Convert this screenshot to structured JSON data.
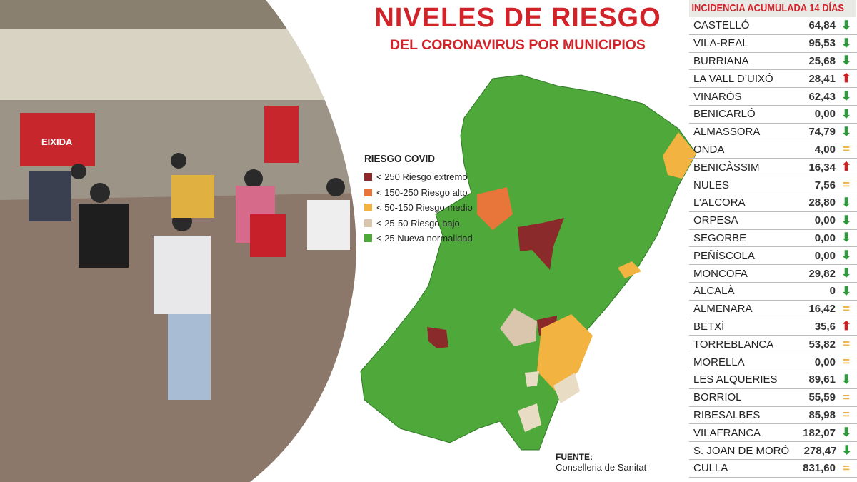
{
  "header": {
    "title": "NIVELES DE RIESGO",
    "subtitle": "DEL CORONAVIRUS POR MUNICIPIOS"
  },
  "photo": {
    "sign_text": "EIXIDA"
  },
  "legend": {
    "title": "RIESGO COVID",
    "items": [
      {
        "label": "< 250 Riesgo extremo",
        "color": "#8b2a2a"
      },
      {
        "label": "< 150-250 Riesgo alto",
        "color": "#e8763a"
      },
      {
        "label": "< 50-150 Riesgo medio",
        "color": "#f2b340"
      },
      {
        "label": "< 25-50 Riesgo bajo",
        "color": "#d9c6ac"
      },
      {
        "label": "< 25 Nueva normalidad",
        "color": "#4ea83a"
      }
    ]
  },
  "source": {
    "label": "FUENTE:",
    "value": "Conselleria de Sanitat"
  },
  "table": {
    "title": "INCIDENCIA ACUMULADA 14 DÍAS",
    "rows": [
      {
        "name": "CASTELLÓ",
        "value": "64,84",
        "trend": "down"
      },
      {
        "name": "VILA-REAL",
        "value": "95,53",
        "trend": "down"
      },
      {
        "name": "BURRIANA",
        "value": "25,68",
        "trend": "down"
      },
      {
        "name": "LA VALL D’UIXÓ",
        "value": "28,41",
        "trend": "up"
      },
      {
        "name": "VINARÒS",
        "value": "62,43",
        "trend": "down"
      },
      {
        "name": "BENICARLÓ",
        "value": "0,00",
        "trend": "down"
      },
      {
        "name": "ALMASSORA",
        "value": "74,79",
        "trend": "down"
      },
      {
        "name": "ONDA",
        "value": "4,00",
        "trend": "equal"
      },
      {
        "name": "BENICÀSSIM",
        "value": "16,34",
        "trend": "up"
      },
      {
        "name": "NULES",
        "value": "7,56",
        "trend": "equal"
      },
      {
        "name": "L’ALCORA",
        "value": "28,80",
        "trend": "down"
      },
      {
        "name": "ORPESA",
        "value": "0,00",
        "trend": "down"
      },
      {
        "name": "SEGORBE",
        "value": "0,00",
        "trend": "down"
      },
      {
        "name": "PEÑÍSCOLA",
        "value": "0,00",
        "trend": "down"
      },
      {
        "name": "MONCOFA",
        "value": "29,82",
        "trend": "down"
      },
      {
        "name": "ALCALÀ",
        "value": "0",
        "trend": "down"
      },
      {
        "name": "ALMENARA",
        "value": "16,42",
        "trend": "equal"
      },
      {
        "name": "BETXÍ",
        "value": "35,6",
        "trend": "up"
      },
      {
        "name": "TORREBLANCA",
        "value": "53,82",
        "trend": "equal"
      },
      {
        "name": "MORELLA",
        "value": "0,00",
        "trend": "equal"
      },
      {
        "name": "LES ALQUERIES",
        "value": "89,61",
        "trend": "down"
      },
      {
        "name": "BORRIOL",
        "value": "55,59",
        "trend": "equal"
      },
      {
        "name": "RIBESALBES",
        "value": "85,98",
        "trend": "equal"
      },
      {
        "name": "VILAFRANCA",
        "value": "182,07",
        "trend": "down"
      },
      {
        "name": "S. JOAN DE MORÓ",
        "value": "278,47",
        "trend": "down"
      },
      {
        "name": "CULLA",
        "value": "831,60",
        "trend": "equal"
      }
    ]
  }
}
